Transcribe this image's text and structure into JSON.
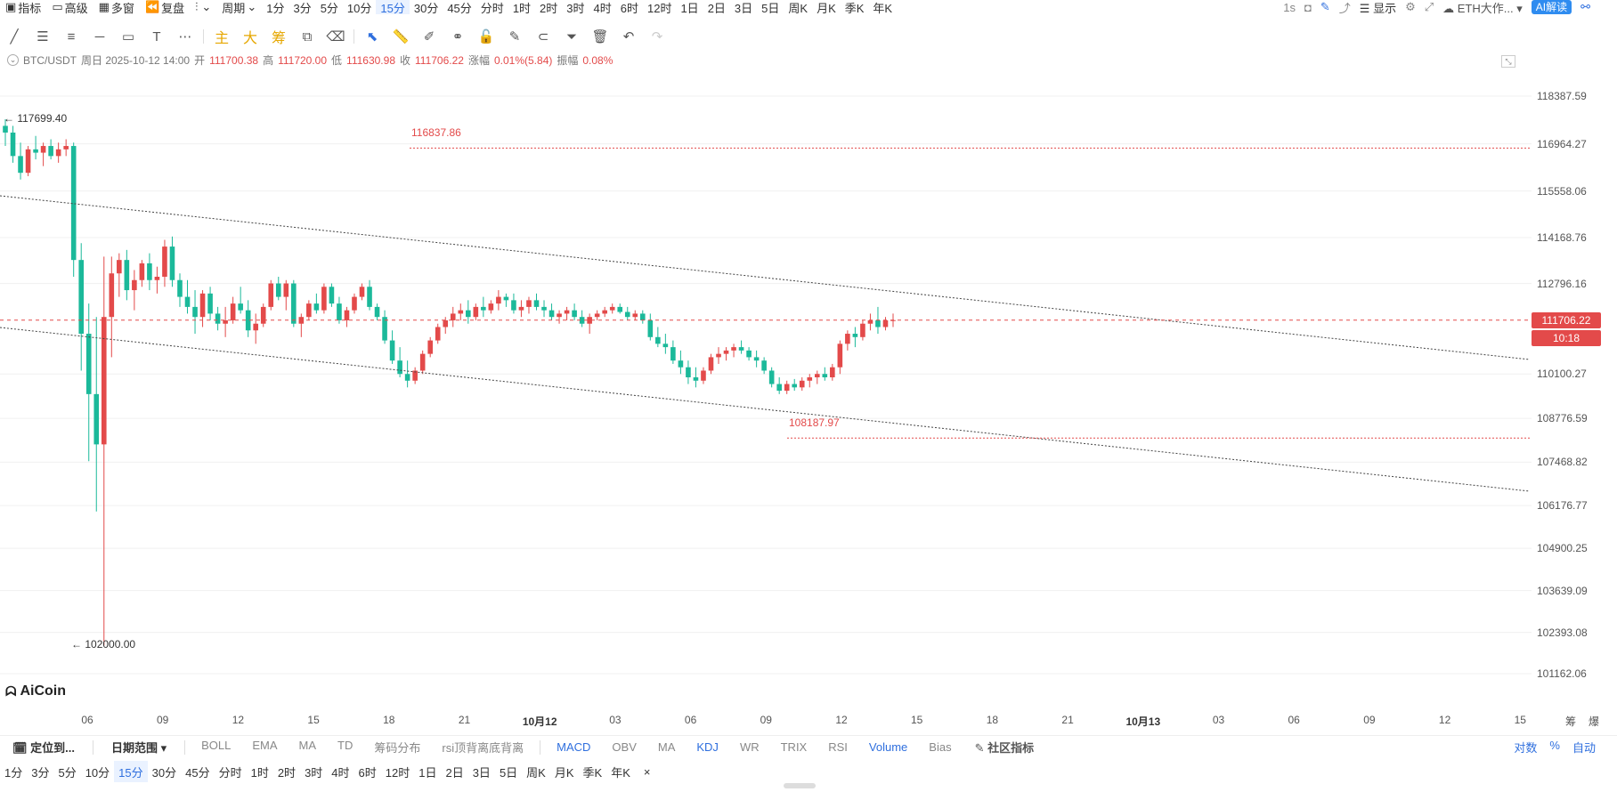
{
  "topbar": {
    "items": [
      {
        "icon": "indicator-icon",
        "label": "指标"
      },
      {
        "icon": "advanced-icon",
        "label": "高级"
      },
      {
        "icon": "multi-window-icon",
        "label": "多窗"
      },
      {
        "icon": "replay-icon",
        "label": "复盘"
      },
      {
        "icon": "chart-type-icon",
        "label": ""
      },
      {
        "icon": "",
        "label": "周期"
      }
    ],
    "intervals": [
      "1分",
      "3分",
      "5分",
      "10分",
      "15分",
      "30分",
      "45分",
      "分时",
      "1时",
      "2时",
      "3时",
      "4时",
      "6时",
      "12时",
      "1日",
      "2日",
      "3日",
      "5日",
      "周K",
      "月K",
      "季K",
      "年K"
    ],
    "active_interval": "15分",
    "right": {
      "realtime": "1s",
      "display": "显示",
      "source": "ETH大作...",
      "ai_button": "AI解读"
    }
  },
  "drawbar": {
    "tools": [
      "line-tool-icon",
      "parallel-channel-icon",
      "fib-icon",
      "horizontal-line-icon",
      "rectangle-icon",
      "text-tool-icon",
      "more-icon"
    ],
    "main_labels": [
      "主",
      "大",
      "筹"
    ],
    "tools2": [
      "copy-icon",
      "eraser-icon",
      "pointer-icon",
      "ruler-icon",
      "brush-icon",
      "binoculars-icon",
      "lock-icon",
      "edit-icon",
      "magnet-icon",
      "filter-icon",
      "trash-icon",
      "undo-icon",
      "redo-icon"
    ]
  },
  "info": {
    "pair": "BTC/USDT",
    "date": "周日 2025-10-12 14:00",
    "open_label": "开",
    "open": "111700.38",
    "high_label": "高",
    "high": "111720.00",
    "low_label": "低",
    "low": "111630.98",
    "close_label": "收",
    "close": "111706.22",
    "change_label": "涨幅",
    "change": "0.01%(5.84)",
    "amp_label": "振幅",
    "amp": "0.08%"
  },
  "annotations": {
    "high_marker": "117699.40",
    "low_marker": "102000.00",
    "level_upper": "116837.86",
    "level_lower": "108187.97"
  },
  "price_axis": {
    "ticks": [
      "118387.59",
      "116964.27",
      "115558.06",
      "114168.76",
      "112796.16",
      "110100.27",
      "108776.59",
      "107468.82",
      "106176.77",
      "104900.25",
      "103639.09",
      "102393.08",
      "101162.06"
    ],
    "current_price": "111706.22",
    "countdown": "10:18",
    "colors": {
      "up": "#e34a4a",
      "down": "#1bb99a",
      "grid": "#f0f0f0"
    }
  },
  "time_axis": {
    "ticks": [
      "06",
      "09",
      "12",
      "15",
      "18",
      "21",
      "10月12",
      "03",
      "06",
      "09",
      "12",
      "15",
      "18",
      "21",
      "10月13",
      "03",
      "06",
      "09",
      "12",
      "15"
    ],
    "right_labels": [
      "筹",
      "爆"
    ]
  },
  "chart_data": {
    "type": "candlestick",
    "x": "15-minute candles",
    "open_high_low_close_last": [
      "111700.38",
      "111720.00",
      "111630.98",
      "111706.22"
    ],
    "candles": [
      [
        117500,
        117699,
        116900,
        117300
      ],
      [
        117300,
        117500,
        116400,
        116600
      ],
      [
        116600,
        117000,
        115900,
        116100
      ],
      [
        116100,
        116900,
        116000,
        116800
      ],
      [
        116800,
        117200,
        116500,
        116700
      ],
      [
        116700,
        117000,
        116300,
        116900
      ],
      [
        116900,
        117100,
        116500,
        116600
      ],
      [
        116600,
        117000,
        116400,
        116800
      ],
      [
        116800,
        117100,
        116600,
        116900
      ],
      [
        116900,
        117000,
        113000,
        113500
      ],
      [
        113500,
        114000,
        110200,
        111300
      ],
      [
        111300,
        112200,
        107500,
        109500
      ],
      [
        109500,
        111800,
        106000,
        108000
      ],
      [
        108000,
        113600,
        102000,
        111800
      ],
      [
        111800,
        113600,
        110600,
        113100
      ],
      [
        113100,
        113700,
        112400,
        113500
      ],
      [
        113500,
        113800,
        112300,
        112600
      ],
      [
        112600,
        113200,
        112000,
        112900
      ],
      [
        112900,
        113500,
        112700,
        113400
      ],
      [
        113400,
        113700,
        112600,
        112900
      ],
      [
        112900,
        113300,
        112500,
        113000
      ],
      [
        113000,
        114100,
        112700,
        113900
      ],
      [
        113900,
        114200,
        112700,
        112900
      ],
      [
        112900,
        113100,
        112100,
        112400
      ],
      [
        112400,
        112900,
        111900,
        112100
      ],
      [
        112100,
        112600,
        111300,
        111800
      ],
      [
        111800,
        112600,
        111500,
        112500
      ],
      [
        112500,
        112700,
        111700,
        111900
      ],
      [
        111900,
        112100,
        111400,
        111600
      ],
      [
        111600,
        112100,
        111200,
        111700
      ],
      [
        111700,
        112400,
        111600,
        112200
      ],
      [
        112200,
        112700,
        111900,
        112000
      ],
      [
        112000,
        112300,
        111200,
        111400
      ],
      [
        111400,
        111900,
        111000,
        111600
      ],
      [
        111600,
        112200,
        111500,
        112100
      ],
      [
        112100,
        112900,
        112000,
        112800
      ],
      [
        112800,
        113000,
        112300,
        112400
      ],
      [
        112400,
        112900,
        112000,
        112800
      ],
      [
        112800,
        112900,
        111500,
        111600
      ],
      [
        111600,
        111900,
        111200,
        111800
      ],
      [
        111800,
        112300,
        111700,
        112200
      ],
      [
        112200,
        112500,
        111900,
        112000
      ],
      [
        112000,
        112800,
        111900,
        112700
      ],
      [
        112700,
        112800,
        112100,
        112200
      ],
      [
        112200,
        112400,
        111600,
        111700
      ],
      [
        111700,
        112100,
        111500,
        112000
      ],
      [
        112000,
        112500,
        111900,
        112400
      ],
      [
        112400,
        112800,
        112300,
        112700
      ],
      [
        112700,
        112900,
        112000,
        112100
      ],
      [
        112100,
        112200,
        111700,
        111800
      ],
      [
        111800,
        112000,
        111000,
        111100
      ],
      [
        111100,
        111400,
        110400,
        110500
      ],
      [
        110500,
        110900,
        110000,
        110100
      ],
      [
        110100,
        110500,
        109700,
        109900
      ],
      [
        109900,
        110300,
        109800,
        110200
      ],
      [
        110200,
        110800,
        110100,
        110700
      ],
      [
        110700,
        111200,
        110600,
        111100
      ],
      [
        111100,
        111600,
        111000,
        111500
      ],
      [
        111500,
        111800,
        111300,
        111700
      ],
      [
        111700,
        112100,
        111500,
        111900
      ],
      [
        111900,
        112200,
        111700,
        112000
      ],
      [
        112000,
        112300,
        111600,
        111800
      ],
      [
        111800,
        112200,
        111700,
        112100
      ],
      [
        112100,
        112400,
        111800,
        112000
      ],
      [
        112000,
        112300,
        111900,
        112200
      ],
      [
        112200,
        112600,
        112000,
        112400
      ],
      [
        112400,
        112500,
        112100,
        112300
      ],
      [
        112300,
        112500,
        111900,
        112000
      ],
      [
        112000,
        112300,
        111800,
        112100
      ],
      [
        112100,
        112400,
        111900,
        112300
      ],
      [
        112300,
        112500,
        112000,
        112100
      ],
      [
        112100,
        112300,
        111800,
        112000
      ],
      [
        112000,
        112200,
        111700,
        111800
      ],
      [
        111800,
        112000,
        111600,
        111900
      ],
      [
        111900,
        112100,
        111700,
        112000
      ],
      [
        112000,
        112200,
        111700,
        111800
      ],
      [
        111800,
        112000,
        111500,
        111600
      ],
      [
        111600,
        111900,
        111300,
        111800
      ],
      [
        111800,
        112000,
        111700,
        111900
      ],
      [
        111900,
        112100,
        111800,
        112000
      ],
      [
        112000,
        112200,
        111900,
        112100
      ],
      [
        112100,
        112200,
        111900,
        111950
      ],
      [
        111950,
        112100,
        111700,
        111800
      ],
      [
        111800,
        112000,
        111700,
        111900
      ],
      [
        111900,
        112000,
        111600,
        111700
      ],
      [
        111700,
        111900,
        111100,
        111200
      ],
      [
        111200,
        111500,
        110900,
        111000
      ],
      [
        111000,
        111300,
        110700,
        110900
      ],
      [
        110900,
        111100,
        110400,
        110500
      ],
      [
        110500,
        110800,
        110100,
        110300
      ],
      [
        110300,
        110500,
        109800,
        110000
      ],
      [
        110000,
        110300,
        109700,
        109900
      ],
      [
        109900,
        110300,
        109800,
        110200
      ],
      [
        110200,
        110700,
        110100,
        110600
      ],
      [
        110600,
        110900,
        110400,
        110700
      ],
      [
        110700,
        110900,
        110500,
        110800
      ],
      [
        110800,
        111000,
        110600,
        110900
      ],
      [
        110900,
        111100,
        110700,
        110800
      ],
      [
        110800,
        110900,
        110500,
        110600
      ],
      [
        110600,
        110800,
        110300,
        110500
      ],
      [
        110500,
        110600,
        110100,
        110200
      ],
      [
        110200,
        110300,
        109700,
        109800
      ],
      [
        109800,
        110000,
        109500,
        109600
      ],
      [
        109600,
        109900,
        109500,
        109800
      ],
      [
        109800,
        109950,
        109600,
        109700
      ],
      [
        109700,
        110000,
        109600,
        109900
      ],
      [
        109900,
        110100,
        109700,
        110000
      ],
      [
        110000,
        110200,
        109800,
        110100
      ],
      [
        110100,
        110300,
        109900,
        110000
      ],
      [
        110000,
        110400,
        109900,
        110300
      ],
      [
        110300,
        111100,
        110100,
        111000
      ],
      [
        111000,
        111400,
        110800,
        111300
      ],
      [
        111300,
        111500,
        110900,
        111200
      ],
      [
        111200,
        111700,
        111100,
        111600
      ],
      [
        111600,
        111900,
        111400,
        111700
      ],
      [
        111700,
        112100,
        111300,
        111500
      ],
      [
        111500,
        111800,
        111400,
        111700
      ],
      [
        111700,
        111900,
        111500,
        111706
      ]
    ],
    "lines": {
      "channel_upper": "dotted descending line",
      "channel_lower": "dotted descending line",
      "level_upper": 116837.86,
      "level_lower": 108187.97,
      "current": 111706.22
    },
    "ylim": [
      101162.06,
      118387.59
    ]
  },
  "logo": {
    "text": "AiCoin"
  },
  "indicator_bar": {
    "locate": "定位到...",
    "date_range": "日期范围",
    "main_indicators": [
      "BOLL",
      "EMA",
      "MA",
      "TD",
      "筹码分布",
      "rsi顶背离底背离"
    ],
    "sub_indicators": [
      {
        "label": "MACD",
        "on": true
      },
      {
        "label": "OBV",
        "on": false
      },
      {
        "label": "MA",
        "on": false
      },
      {
        "label": "KDJ",
        "on": true
      },
      {
        "label": "WR",
        "on": false
      },
      {
        "label": "TRIX",
        "on": false
      },
      {
        "label": "RSI",
        "on": false
      },
      {
        "label": "Volume",
        "on": true
      },
      {
        "label": "Bias",
        "on": false
      }
    ],
    "community": "社区指标",
    "right": [
      "对数",
      "%",
      "自动"
    ]
  },
  "bottom_intervals": [
    "1分",
    "3分",
    "5分",
    "10分",
    "15分",
    "30分",
    "45分",
    "分时",
    "1时",
    "2时",
    "3时",
    "4时",
    "6时",
    "12时",
    "1日",
    "2日",
    "3日",
    "5日",
    "周K",
    "月K",
    "季K",
    "年K"
  ],
  "bottom_active": "15分",
  "bottom_close": "×"
}
